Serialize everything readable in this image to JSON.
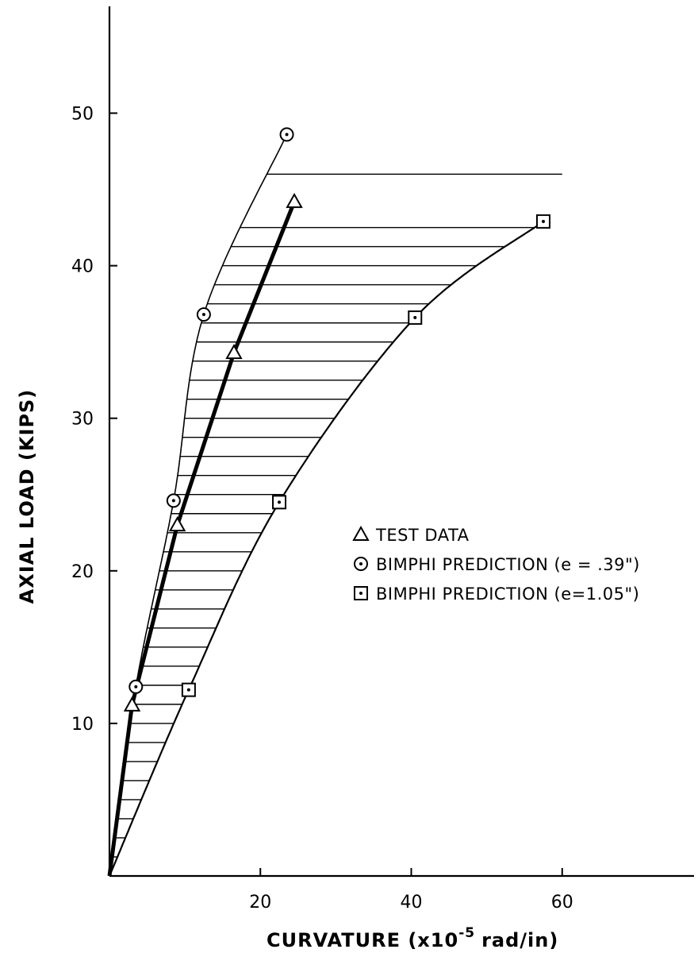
{
  "chart_data": {
    "type": "line",
    "xlabel": "CURVATURE (x10",
    "xlabel_exponent": "-5",
    "xlabel_unit": "rad/in)",
    "ylabel": "AXIAL LOAD (KIPS)",
    "xlim": [
      0,
      78
    ],
    "ylim": [
      0,
      57
    ],
    "x_ticks": [
      "20",
      "40",
      "60"
    ],
    "y_ticks": [
      "10",
      "20",
      "30",
      "40",
      "50"
    ],
    "legend_position": "middle-right",
    "grid": false,
    "series": [
      {
        "name": "TEST DATA",
        "marker": "triangle",
        "line": "thick",
        "x": [
          0,
          3,
          9,
          16.5,
          24.5
        ],
        "y": [
          0,
          11.2,
          23,
          34.3,
          44.2
        ]
      },
      {
        "name": "BIMPHI PREDICTION (e = .39\")",
        "marker": "circle-dot",
        "line": "thin",
        "x": [
          0,
          3.5,
          8.5,
          12.5,
          23.5
        ],
        "y": [
          0,
          12.4,
          24.6,
          36.8,
          48.6
        ]
      },
      {
        "name": "BIMPHI PREDICTION (e=1.05\")",
        "marker": "square-dot",
        "line": "thin",
        "x": [
          0,
          10.5,
          22.5,
          40.5,
          57.5
        ],
        "y": [
          0,
          12.2,
          24.5,
          36.6,
          42.9
        ]
      }
    ],
    "annotations": {
      "shaded_region": "horizontal hatching between the two BIMPHI prediction curves",
      "reference_line": {
        "y": 46,
        "x_from": 20,
        "x_to": 60
      }
    }
  }
}
